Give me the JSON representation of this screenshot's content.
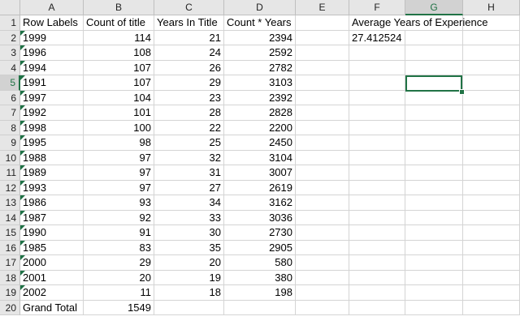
{
  "columns": [
    "A",
    "B",
    "C",
    "D",
    "E",
    "F",
    "G",
    "H"
  ],
  "header_row": {
    "row_label": "Row Labels",
    "count_label": "Count of title",
    "years_label": "Years In Title",
    "product_label": "Count * Years",
    "avg_label": "Average Years of Experience"
  },
  "avg_value": "27.412524",
  "rows": [
    {
      "label": "1999",
      "count": "114",
      "years": "21",
      "product": "2394"
    },
    {
      "label": "1996",
      "count": "108",
      "years": "24",
      "product": "2592"
    },
    {
      "label": "1994",
      "count": "107",
      "years": "26",
      "product": "2782"
    },
    {
      "label": "1991",
      "count": "107",
      "years": "29",
      "product": "3103"
    },
    {
      "label": "1997",
      "count": "104",
      "years": "23",
      "product": "2392"
    },
    {
      "label": "1992",
      "count": "101",
      "years": "28",
      "product": "2828"
    },
    {
      "label": "1998",
      "count": "100",
      "years": "22",
      "product": "2200"
    },
    {
      "label": "1995",
      "count": "98",
      "years": "25",
      "product": "2450"
    },
    {
      "label": "1988",
      "count": "97",
      "years": "32",
      "product": "3104"
    },
    {
      "label": "1989",
      "count": "97",
      "years": "31",
      "product": "3007"
    },
    {
      "label": "1993",
      "count": "97",
      "years": "27",
      "product": "2619"
    },
    {
      "label": "1986",
      "count": "93",
      "years": "34",
      "product": "3162"
    },
    {
      "label": "1987",
      "count": "92",
      "years": "33",
      "product": "3036"
    },
    {
      "label": "1990",
      "count": "91",
      "years": "30",
      "product": "2730"
    },
    {
      "label": "1985",
      "count": "83",
      "years": "35",
      "product": "2905"
    },
    {
      "label": "2000",
      "count": "29",
      "years": "20",
      "product": "580"
    },
    {
      "label": "2001",
      "count": "20",
      "years": "19",
      "product": "380"
    },
    {
      "label": "2002",
      "count": "11",
      "years": "18",
      "product": "198"
    }
  ],
  "grand_total": {
    "label": "Grand Total",
    "count": "1549"
  },
  "row_numbers": [
    "1",
    "2",
    "3",
    "4",
    "5",
    "6",
    "7",
    "8",
    "9",
    "10",
    "11",
    "12",
    "13",
    "14",
    "15",
    "16",
    "17",
    "18",
    "19",
    "20"
  ],
  "selected_column": "G",
  "selected_row": "5",
  "colors": {
    "accent": "#217346",
    "grid": "#d4d4d4",
    "header_bg": "#e6e6e6"
  }
}
